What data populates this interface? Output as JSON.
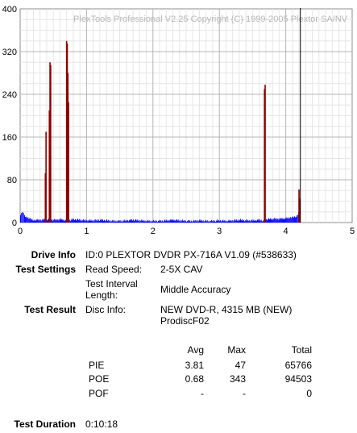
{
  "chart_data": {
    "type": "bar",
    "watermark": "PlexTools Professional V2.25 Copyright (C) 1999-2005 Plextor SA/NV",
    "xlim": [
      0,
      5
    ],
    "ylim": [
      0,
      400
    ],
    "x_ticks": [
      "0",
      "1",
      "2",
      "3",
      "4",
      "5"
    ],
    "y_ticks": [
      "0",
      "80",
      "160",
      "240",
      "320",
      "400"
    ],
    "grid": true,
    "end_marker_x": 4.22,
    "series": [
      {
        "color": "#0000ff",
        "points": [
          [
            0.0,
            16
          ],
          [
            0.03,
            20
          ],
          [
            0.06,
            12
          ],
          [
            0.1,
            9
          ],
          [
            0.15,
            7
          ],
          [
            0.2,
            5
          ],
          [
            0.3,
            5
          ],
          [
            0.4,
            6
          ],
          [
            0.5,
            5
          ],
          [
            0.6,
            6
          ],
          [
            0.7,
            4
          ],
          [
            0.8,
            6
          ],
          [
            0.9,
            5
          ],
          [
            1.0,
            4
          ],
          [
            1.1,
            4
          ],
          [
            1.2,
            5
          ],
          [
            1.3,
            4
          ],
          [
            1.4,
            3
          ],
          [
            1.5,
            3
          ],
          [
            1.6,
            4
          ],
          [
            1.7,
            5
          ],
          [
            1.8,
            4
          ],
          [
            1.9,
            3
          ],
          [
            2.0,
            3
          ],
          [
            2.1,
            3
          ],
          [
            2.2,
            4
          ],
          [
            2.3,
            5
          ],
          [
            2.4,
            4
          ],
          [
            2.5,
            3
          ],
          [
            2.6,
            3
          ],
          [
            2.7,
            4
          ],
          [
            2.8,
            3
          ],
          [
            2.9,
            3
          ],
          [
            3.0,
            4
          ],
          [
            3.1,
            3
          ],
          [
            3.2,
            4
          ],
          [
            3.3,
            5
          ],
          [
            3.4,
            4
          ],
          [
            3.5,
            4
          ],
          [
            3.6,
            5
          ],
          [
            3.65,
            4
          ],
          [
            3.7,
            6
          ],
          [
            3.8,
            7
          ],
          [
            3.9,
            7
          ],
          [
            4.0,
            8
          ],
          [
            4.05,
            9
          ],
          [
            4.1,
            10
          ],
          [
            4.15,
            12
          ],
          [
            4.18,
            14
          ],
          [
            4.2,
            30
          ],
          [
            4.21,
            46
          ]
        ]
      },
      {
        "color": "#8b0000",
        "points": [
          [
            0.37,
            92
          ],
          [
            0.38,
            170
          ],
          [
            0.43,
            210
          ],
          [
            0.44,
            300
          ],
          [
            0.45,
            295
          ],
          [
            0.69,
            340
          ],
          [
            0.7,
            335
          ],
          [
            0.71,
            280
          ],
          [
            0.72,
            225
          ],
          [
            3.67,
            250
          ],
          [
            3.68,
            258
          ],
          [
            4.19,
            62
          ],
          [
            4.2,
            45
          ]
        ]
      }
    ]
  },
  "info": {
    "drive_info_label": "Drive Info",
    "drive_info_value": "ID:0 PLEXTOR DVDR PX-716A V1.09 (#538633)",
    "test_settings_label": "Test Settings",
    "read_speed_key": "Read Speed:",
    "read_speed_value": "2-5X CAV",
    "interval_key_line1": "Test Interval",
    "interval_key_line2": "Length:",
    "interval_value": "Middle Accuracy",
    "test_result_label": "Test Result",
    "disc_info_key": "Disc Info:",
    "disc_info_line1": "NEW DVD-R, 4315 MB (NEW)",
    "disc_info_line2": "ProdiscF02",
    "test_duration_label": "Test Duration",
    "test_duration_value": "0:10:18"
  },
  "stats": {
    "headers": [
      "Avg",
      "Max",
      "Total"
    ],
    "rows": [
      {
        "name": "PIE",
        "avg": "3.81",
        "max": "47",
        "total": "65766"
      },
      {
        "name": "POE",
        "avg": "0.68",
        "max": "343",
        "total": "94503"
      },
      {
        "name": "POF",
        "avg": "-",
        "max": "-",
        "total": "0"
      }
    ]
  }
}
